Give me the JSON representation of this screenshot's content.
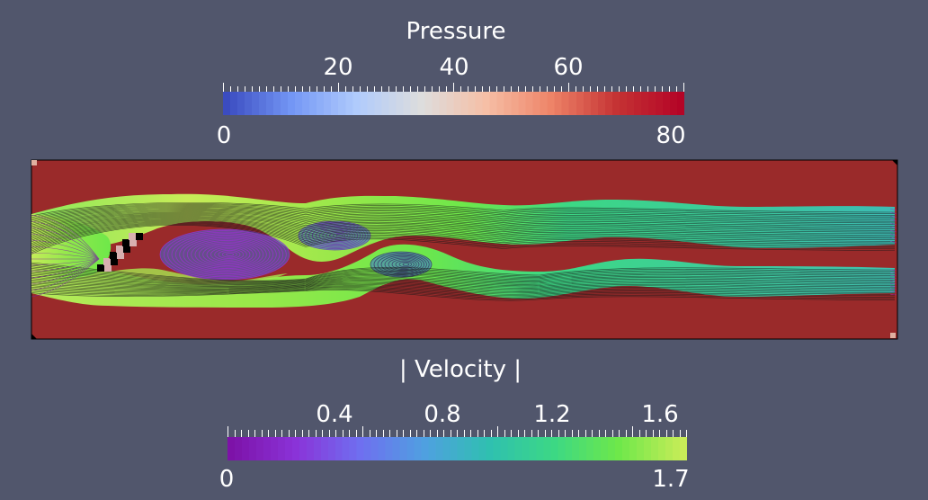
{
  "pressure_legend": {
    "title": "Pressure",
    "range_min": "0",
    "range_max": "80",
    "ticks": [
      "20",
      "40",
      "60"
    ],
    "colors": [
      "#3b4cc0",
      "#7396f5",
      "#b0cbfc",
      "#dddddd",
      "#f6bfa6",
      "#ee8468",
      "#c53334",
      "#b40426"
    ]
  },
  "velocity_legend": {
    "title": "| Velocity |",
    "range_min": "0",
    "range_max": "1.7",
    "ticks": [
      "0.4",
      "0.8",
      "1.2",
      "1.6"
    ],
    "colors": [
      "#7d12a8",
      "#8a33d8",
      "#6f6ff0",
      "#4fa0e0",
      "#2fc0b0",
      "#3cd884",
      "#6ee84a",
      "#c8ec58"
    ]
  },
  "domain": {
    "background_color": "#9a2a2a",
    "obstacle_color": "#000000"
  }
}
